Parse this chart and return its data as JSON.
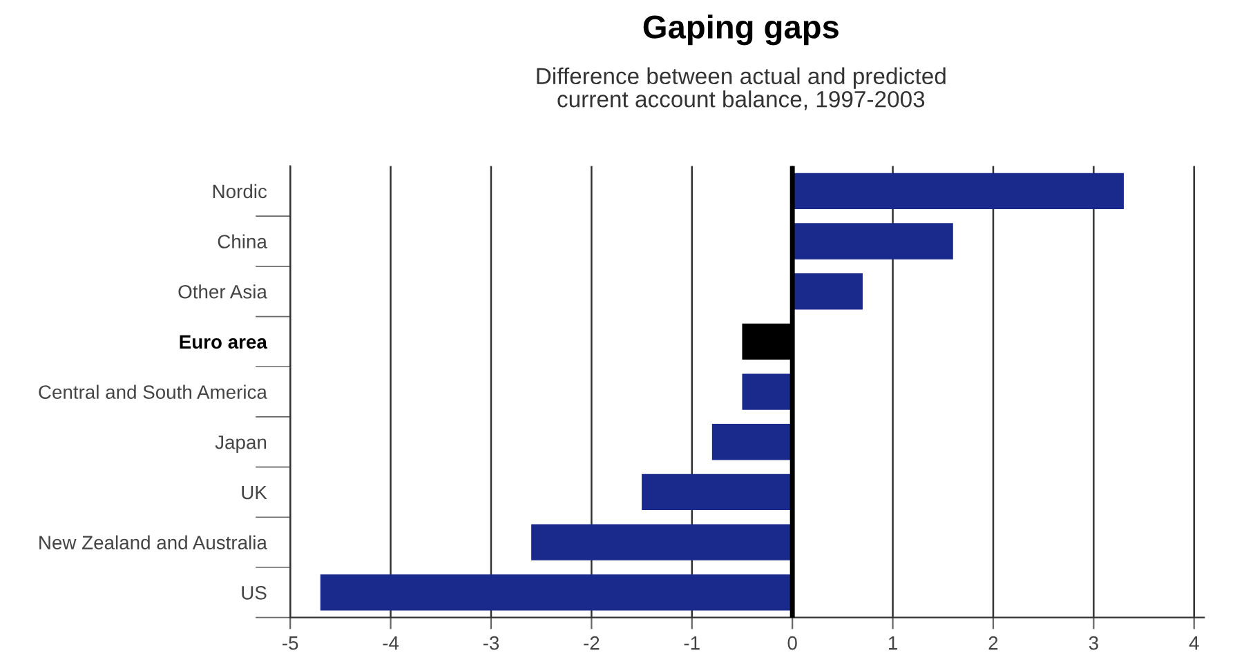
{
  "chart_data": {
    "type": "bar",
    "orientation": "horizontal",
    "title": "Gaping gaps",
    "subtitle": "Difference between actual and predicted\ncurrent account balance, 1997-2003",
    "categories": [
      "Nordic",
      "China",
      "Other Asia",
      "Euro area",
      "Central and South America",
      "Japan",
      "UK",
      "New Zealand and Australia",
      "US"
    ],
    "values": [
      3.3,
      1.6,
      0.7,
      -0.5,
      -0.5,
      -0.8,
      -1.5,
      -2.6,
      -4.7
    ],
    "colors": [
      "#1a2a8c",
      "#1a2a8c",
      "#1a2a8c",
      "#000000",
      "#1a2a8c",
      "#1a2a8c",
      "#1a2a8c",
      "#1a2a8c",
      "#1a2a8c"
    ],
    "xlim": [
      -5,
      4.1
    ],
    "xticks": [
      -5,
      -4,
      -3,
      -2,
      -1,
      0,
      1,
      2,
      3,
      4
    ],
    "grid": "x",
    "ref_lines": [
      {
        "axis": "x",
        "value": 0,
        "color": "#000000"
      }
    ]
  }
}
